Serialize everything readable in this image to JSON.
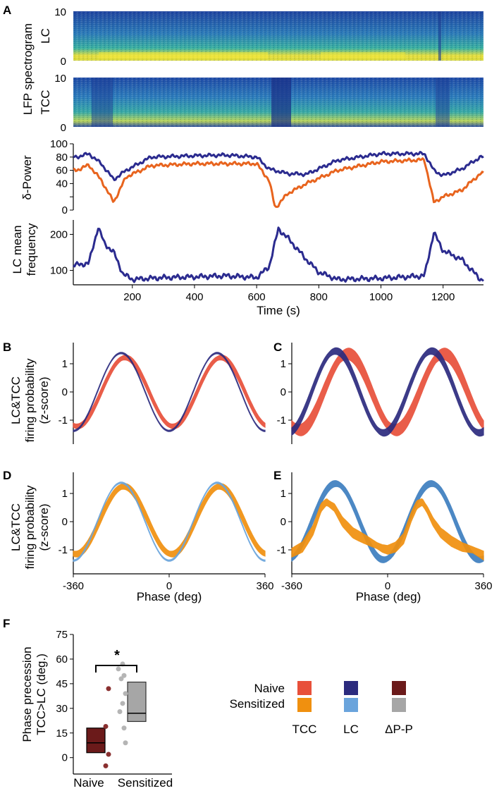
{
  "colors": {
    "tcc_naive": "#e8503a",
    "tcc_sensitized": "#f0900f",
    "lc_naive": "#2c2b7e",
    "lc_sensitized": "#6aa4dc",
    "lc_sensitized_dark": "#3d7ec0",
    "dpp_naive": "#6b1a1a",
    "dpp_sensitized": "#a6a6a6",
    "trace_blue": "#2b2b8f",
    "trace_orange": "#e8641e",
    "spectro_low": "#1e3f9a",
    "spectro_mid": "#2ea8a5",
    "spectro_high": "#f4e63a"
  },
  "chart_data": [
    {
      "id": "A",
      "panel_label": "A",
      "type": "heatmap+line",
      "spectrogram_ylabel": "LFP spectrogram",
      "spectrograms": [
        {
          "name": "LC",
          "ylabel": "LC",
          "yticks": [
            "10",
            "0"
          ],
          "ylim": [
            0,
            10
          ]
        },
        {
          "name": "TCC",
          "ylabel": "TCC",
          "yticks": [
            "10",
            "0"
          ],
          "ylim": [
            0,
            10
          ]
        }
      ],
      "delta_power": {
        "ylabel": "δ-Power",
        "ylim": [
          0,
          100
        ],
        "yticks": [
          "100",
          "80",
          "60",
          "40",
          "20",
          "0"
        ],
        "series": [
          {
            "name": "LC",
            "x": [
              20,
              60,
              100,
              140,
              180,
              260,
              400,
              500,
              600,
              640,
              700,
              760,
              860,
              1000,
              1140,
              1170,
              1200,
              1260,
              1320
            ],
            "values": [
              80,
              85,
              70,
              46,
              60,
              80,
              82,
              83,
              80,
              62,
              55,
              54,
              75,
              85,
              85,
              60,
              52,
              62,
              80
            ]
          },
          {
            "name": "TCC",
            "x": [
              20,
              60,
              100,
              140,
              180,
              260,
              400,
              500,
              600,
              640,
              660,
              700,
              760,
              860,
              1000,
              1140,
              1170,
              1200,
              1260,
              1320
            ],
            "values": [
              60,
              68,
              45,
              12,
              50,
              67,
              70,
              70,
              70,
              45,
              3,
              25,
              40,
              60,
              73,
              76,
              12,
              20,
              30,
              55
            ]
          }
        ]
      },
      "lc_frequency": {
        "ylabel": "LC mean frequency",
        "yticks": [
          "200",
          "100"
        ],
        "ylim": [
          60,
          240
        ],
        "xlabel": "Time (s)",
        "xticks": [
          "200",
          "400",
          "600",
          "800",
          "1000",
          "1200"
        ],
        "xlim": [
          10,
          1330
        ],
        "series": [
          {
            "name": "LC",
            "x": [
              20,
              60,
              90,
              110,
              140,
              170,
              200,
              300,
              400,
              500,
              600,
              640,
              670,
              700,
              760,
              800,
              860,
              1000,
              1140,
              1170,
              1200,
              1260,
              1320
            ],
            "values": [
              115,
              120,
              220,
              175,
              150,
              90,
              75,
              80,
              82,
              85,
              80,
              110,
              215,
              190,
              130,
              95,
              75,
              78,
              85,
              205,
              155,
              130,
              75
            ]
          }
        ]
      }
    },
    {
      "id": "B",
      "panel_label": "B",
      "type": "line",
      "ylabel_lines": [
        "LC&TCC",
        "firing probability",
        "(z-score)"
      ],
      "yticks": [
        "1",
        "0",
        "-1"
      ],
      "xlim": [
        -360,
        360
      ],
      "series": [
        {
          "name": "TCC (Naive)",
          "amp": 1.22,
          "offset": 0.0,
          "peak": 195,
          "band": 0.12
        },
        {
          "name": "LC (Naive)",
          "amp": 1.38,
          "offset": 0.0,
          "peak": 180,
          "band": 0.03
        }
      ]
    },
    {
      "id": "C",
      "panel_label": "C",
      "type": "line",
      "yticks": [
        "1",
        "0",
        "-1"
      ],
      "xlim": [
        -360,
        360
      ],
      "series": [
        {
          "name": "TCC (Naive)",
          "amp": 1.35,
          "offset": 0.0,
          "peak": 210,
          "band": 0.25
        },
        {
          "name": "LC (Naive)",
          "amp": 1.45,
          "offset": 0.0,
          "peak": 165,
          "band": 0.15
        }
      ]
    },
    {
      "id": "D",
      "panel_label": "D",
      "type": "line",
      "ylabel_lines": [
        "LC&TCC",
        "firing probability",
        "(z-score)"
      ],
      "yticks": [
        "1",
        "0",
        "-1"
      ],
      "xlim": [
        -360,
        360
      ],
      "xlabel": "Phase (deg)",
      "xticks": [
        "-360",
        "0",
        "360"
      ],
      "series": [
        {
          "name": "TCC (Sensitized)",
          "amp": 1.2,
          "offset": 0.05,
          "peak": 190,
          "band": 0.15
        },
        {
          "name": "LC (Sensitized)",
          "amp": 1.38,
          "offset": 0.0,
          "peak": 180,
          "band": 0.03
        }
      ]
    },
    {
      "id": "E",
      "panel_label": "E",
      "type": "line",
      "yticks": [
        "1",
        "0",
        "-1"
      ],
      "xlim": [
        -360,
        360
      ],
      "xlabel": "Phase (deg)",
      "xticks": [
        "-360",
        "0",
        "360"
      ],
      "series": [
        {
          "name": "LC (Sensitized)",
          "amp": 1.35,
          "offset": 0.0,
          "peak": 165,
          "band": 0.15
        },
        {
          "name": "TCC (Sensitized)",
          "x": [
            -360,
            -320,
            -280,
            -250,
            -230,
            -200,
            -170,
            -130,
            -90,
            -50,
            -20,
            0,
            30,
            60,
            90,
            110,
            130,
            150,
            170,
            200,
            240,
            280,
            320,
            360
          ],
          "values": [
            -1.1,
            -0.9,
            -0.3,
            0.5,
            0.7,
            0.5,
            0.0,
            -0.4,
            -0.6,
            -0.8,
            -0.95,
            -1.0,
            -0.9,
            -0.6,
            0.2,
            0.6,
            0.7,
            0.4,
            0.0,
            -0.4,
            -0.7,
            -0.9,
            -1.0,
            -1.2
          ],
          "band": 0.18
        }
      ]
    },
    {
      "id": "F",
      "panel_label": "F",
      "type": "box+scatter",
      "ylabel_lines": [
        "Phase precession",
        "TCC>LC (deg.)"
      ],
      "ylim": [
        -10,
        75
      ],
      "yticks": [
        "75",
        "60",
        "45",
        "30",
        "15",
        "0"
      ],
      "categories": [
        "Naive",
        "Sensitized"
      ],
      "significance": "*",
      "boxes": [
        {
          "name": "Naive",
          "q1": 3,
          "median": 9,
          "q3": 18
        },
        {
          "name": "Sensitized",
          "q1": 22,
          "median": 27,
          "q3": 46
        }
      ],
      "points": [
        {
          "group": "Naive",
          "values": [
            42,
            19,
            2,
            -5
          ]
        },
        {
          "group": "Sensitized",
          "values": [
            57,
            54,
            50,
            48,
            39,
            33,
            28,
            18,
            9
          ]
        }
      ]
    }
  ],
  "legend": {
    "rows": [
      "Naive",
      "Sensitized"
    ],
    "columns": [
      "TCC",
      "LC",
      "ΔP-P"
    ]
  }
}
